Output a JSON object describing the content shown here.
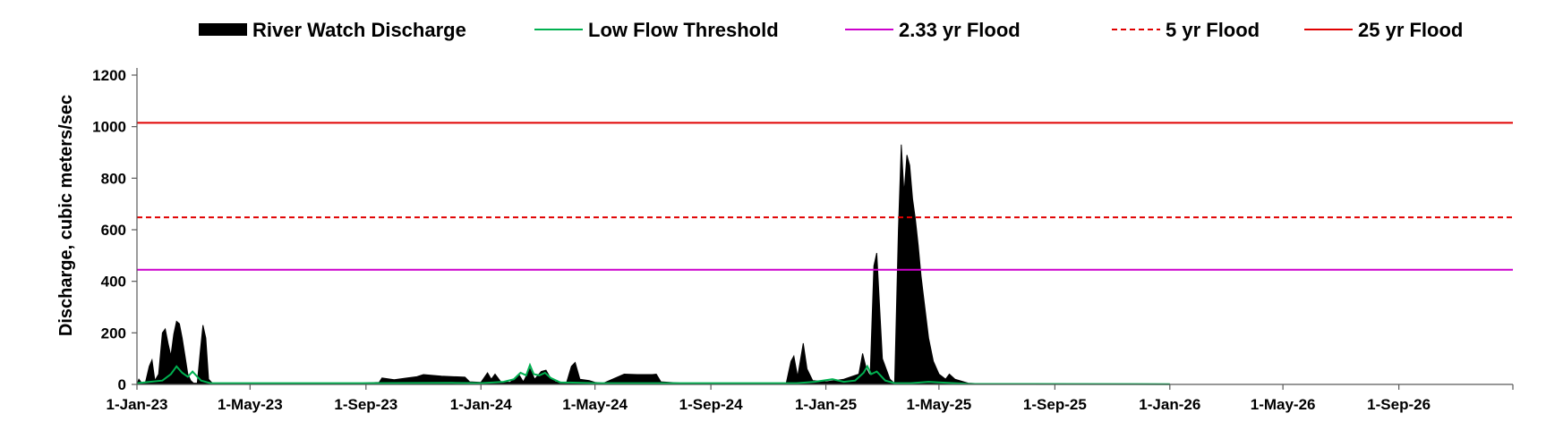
{
  "chart_data": {
    "type": "area",
    "title": "",
    "xlabel": "",
    "ylabel": "Discharge, cubic meters/sec",
    "ylim": [
      0,
      1200
    ],
    "xlim": [
      "2023-01-01",
      "2026-12-31"
    ],
    "y_ticks": [
      0,
      200,
      400,
      600,
      800,
      1000,
      1200
    ],
    "x_ticks": [
      {
        "date": "2023-01-01",
        "label": "1-Jan-23"
      },
      {
        "date": "2023-05-01",
        "label": "1-May-23"
      },
      {
        "date": "2023-09-01",
        "label": "1-Sep-23"
      },
      {
        "date": "2024-01-01",
        "label": "1-Jan-24"
      },
      {
        "date": "2024-05-01",
        "label": "1-May-24"
      },
      {
        "date": "2024-09-01",
        "label": "1-Sep-24"
      },
      {
        "date": "2025-01-01",
        "label": "1-Jan-25"
      },
      {
        "date": "2025-05-01",
        "label": "1-May-25"
      },
      {
        "date": "2025-09-01",
        "label": "1-Sep-25"
      },
      {
        "date": "2026-01-01",
        "label": "1-Jan-26"
      },
      {
        "date": "2026-05-01",
        "label": "1-May-26"
      },
      {
        "date": "2026-09-01",
        "label": "1-Sep-26"
      }
    ],
    "grid": false,
    "legend": "top",
    "series": [
      {
        "name": "River Watch Discharge",
        "style": "area",
        "color": "#000000",
        "points": [
          [
            "2023-01-01",
            0
          ],
          [
            "2023-01-03",
            20
          ],
          [
            "2023-01-06",
            5
          ],
          [
            "2023-01-10",
            8
          ],
          [
            "2023-01-14",
            70
          ],
          [
            "2023-01-17",
            95
          ],
          [
            "2023-01-20",
            15
          ],
          [
            "2023-01-24",
            40
          ],
          [
            "2023-01-28",
            200
          ],
          [
            "2023-01-31",
            215
          ],
          [
            "2023-02-03",
            160
          ],
          [
            "2023-02-06",
            110
          ],
          [
            "2023-02-09",
            195
          ],
          [
            "2023-02-12",
            245
          ],
          [
            "2023-02-15",
            235
          ],
          [
            "2023-02-18",
            180
          ],
          [
            "2023-02-21",
            110
          ],
          [
            "2023-02-24",
            40
          ],
          [
            "2023-02-27",
            15
          ],
          [
            "2023-03-02",
            5
          ],
          [
            "2023-03-06",
            5
          ],
          [
            "2023-03-09",
            120
          ],
          [
            "2023-03-12",
            230
          ],
          [
            "2023-03-15",
            180
          ],
          [
            "2023-03-18",
            20
          ],
          [
            "2023-03-22",
            5
          ],
          [
            "2023-05-01",
            5
          ],
          [
            "2023-06-01",
            4
          ],
          [
            "2023-07-15",
            3
          ],
          [
            "2023-08-01",
            4
          ],
          [
            "2023-08-25",
            5
          ],
          [
            "2023-09-15",
            8
          ],
          [
            "2023-09-18",
            25
          ],
          [
            "2023-10-01",
            18
          ],
          [
            "2023-10-15",
            25
          ],
          [
            "2023-10-25",
            30
          ],
          [
            "2023-11-01",
            38
          ],
          [
            "2023-11-20",
            32
          ],
          [
            "2023-12-15",
            28
          ],
          [
            "2023-12-20",
            10
          ],
          [
            "2024-01-01",
            8
          ],
          [
            "2024-01-08",
            45
          ],
          [
            "2024-01-12",
            20
          ],
          [
            "2024-01-16",
            40
          ],
          [
            "2024-01-22",
            10
          ],
          [
            "2024-02-01",
            8
          ],
          [
            "2024-02-10",
            40
          ],
          [
            "2024-02-15",
            10
          ],
          [
            "2024-02-22",
            60
          ],
          [
            "2024-02-27",
            20
          ],
          [
            "2024-03-05",
            50
          ],
          [
            "2024-03-10",
            55
          ],
          [
            "2024-03-14",
            30
          ],
          [
            "2024-03-20",
            10
          ],
          [
            "2024-04-01",
            8
          ],
          [
            "2024-04-06",
            70
          ],
          [
            "2024-04-10",
            85
          ],
          [
            "2024-04-15",
            20
          ],
          [
            "2024-04-25",
            15
          ],
          [
            "2024-05-01",
            8
          ],
          [
            "2024-05-10",
            5
          ],
          [
            "2024-06-01",
            40
          ],
          [
            "2024-06-15",
            38
          ],
          [
            "2024-07-01",
            38
          ],
          [
            "2024-07-05",
            40
          ],
          [
            "2024-07-10",
            10
          ],
          [
            "2024-08-01",
            5
          ],
          [
            "2024-09-01",
            5
          ],
          [
            "2024-11-20",
            5
          ],
          [
            "2024-11-25",
            90
          ],
          [
            "2024-11-28",
            110
          ],
          [
            "2024-12-02",
            30
          ],
          [
            "2024-12-08",
            160
          ],
          [
            "2024-12-12",
            60
          ],
          [
            "2024-12-18",
            15
          ],
          [
            "2025-01-01",
            10
          ],
          [
            "2025-01-20",
            20
          ],
          [
            "2025-02-05",
            40
          ],
          [
            "2025-02-09",
            120
          ],
          [
            "2025-02-13",
            60
          ],
          [
            "2025-02-17",
            30
          ],
          [
            "2025-02-21",
            460
          ],
          [
            "2025-02-24",
            510
          ],
          [
            "2025-02-27",
            300
          ],
          [
            "2025-03-02",
            100
          ],
          [
            "2025-03-06",
            60
          ],
          [
            "2025-03-10",
            20
          ],
          [
            "2025-03-13",
            10
          ],
          [
            "2025-03-15",
            5
          ],
          [
            "2025-03-19",
            600
          ],
          [
            "2025-03-22",
            930
          ],
          [
            "2025-03-25",
            740
          ],
          [
            "2025-03-28",
            890
          ],
          [
            "2025-03-31",
            850
          ],
          [
            "2025-04-03",
            720
          ],
          [
            "2025-04-06",
            640
          ],
          [
            "2025-04-09",
            540
          ],
          [
            "2025-04-12",
            420
          ],
          [
            "2025-04-16",
            300
          ],
          [
            "2025-04-20",
            180
          ],
          [
            "2025-04-25",
            90
          ],
          [
            "2025-05-01",
            40
          ],
          [
            "2025-05-08",
            20
          ],
          [
            "2025-05-12",
            40
          ],
          [
            "2025-05-18",
            20
          ],
          [
            "2025-06-01",
            5
          ],
          [
            "2025-06-15",
            2
          ]
        ]
      },
      {
        "name": "Low Flow Threshold",
        "style": "line",
        "color": "#00b050",
        "points": [
          [
            "2023-01-01",
            5
          ],
          [
            "2023-01-15",
            10
          ],
          [
            "2023-01-28",
            15
          ],
          [
            "2023-02-06",
            40
          ],
          [
            "2023-02-12",
            70
          ],
          [
            "2023-02-18",
            45
          ],
          [
            "2023-02-24",
            30
          ],
          [
            "2023-03-01",
            50
          ],
          [
            "2023-03-06",
            30
          ],
          [
            "2023-03-10",
            15
          ],
          [
            "2023-03-20",
            5
          ],
          [
            "2023-05-01",
            5
          ],
          [
            "2023-09-01",
            5
          ],
          [
            "2023-12-01",
            6
          ],
          [
            "2024-01-01",
            5
          ],
          [
            "2024-01-25",
            10
          ],
          [
            "2024-02-05",
            20
          ],
          [
            "2024-02-12",
            45
          ],
          [
            "2024-02-18",
            35
          ],
          [
            "2024-02-22",
            75
          ],
          [
            "2024-02-26",
            40
          ],
          [
            "2024-03-03",
            35
          ],
          [
            "2024-03-09",
            45
          ],
          [
            "2024-03-15",
            25
          ],
          [
            "2024-03-25",
            8
          ],
          [
            "2024-05-01",
            5
          ],
          [
            "2024-12-01",
            5
          ],
          [
            "2024-12-20",
            10
          ],
          [
            "2025-01-08",
            20
          ],
          [
            "2025-01-20",
            10
          ],
          [
            "2025-02-01",
            15
          ],
          [
            "2025-02-10",
            45
          ],
          [
            "2025-02-14",
            70
          ],
          [
            "2025-02-18",
            40
          ],
          [
            "2025-02-24",
            50
          ],
          [
            "2025-03-05",
            15
          ],
          [
            "2025-03-15",
            5
          ],
          [
            "2025-04-01",
            5
          ],
          [
            "2025-04-20",
            10
          ],
          [
            "2025-05-01",
            8
          ],
          [
            "2025-05-20",
            4
          ],
          [
            "2025-06-01",
            2
          ],
          [
            "2026-01-01",
            1
          ]
        ]
      },
      {
        "name": "2.33 yr Flood",
        "style": "hline",
        "color": "#cc00cc",
        "value": 445
      },
      {
        "name": "5 yr Flood",
        "style": "hline-dashed",
        "color": "#e00000",
        "value": 648
      },
      {
        "name": "25 yr Flood",
        "style": "hline",
        "color": "#e00000",
        "value": 1015
      }
    ]
  }
}
